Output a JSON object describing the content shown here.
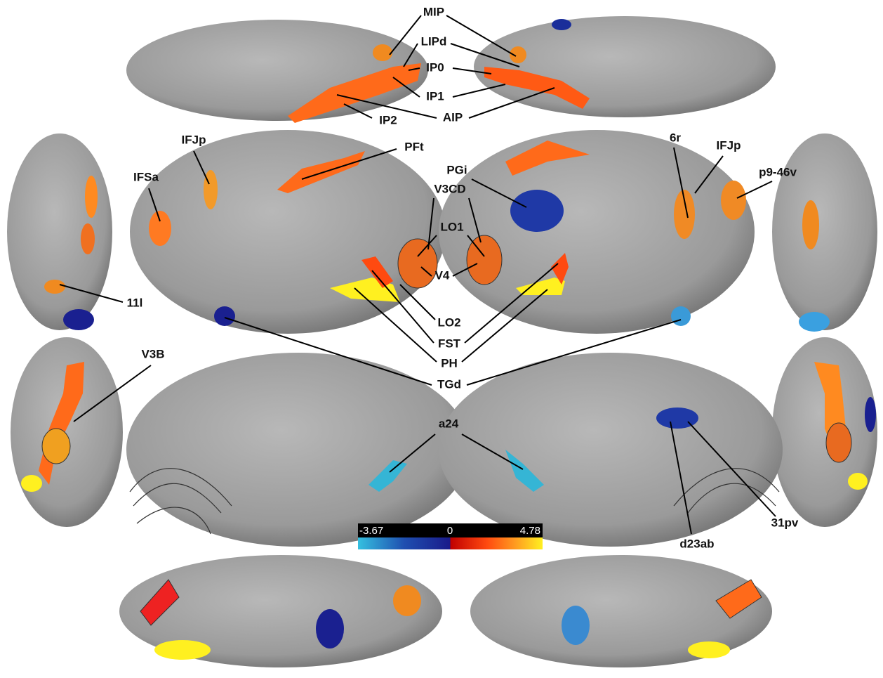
{
  "labels": [
    "MIP",
    "LIPd",
    "IP0",
    "IP1",
    "AIP",
    "IP2",
    "IFJp",
    "PFt",
    "IFSa",
    "PGi",
    "V3CD",
    "6r",
    "IFJp",
    "p9-46v",
    "LO1",
    "V4",
    "11l",
    "LO2",
    "FST",
    "PH",
    "V3B",
    "TGd",
    "a24",
    "d23ab",
    "31pv"
  ],
  "colorbar": {
    "min_label": "-3.67",
    "mid_label": "0",
    "max_label": "4.78"
  }
}
